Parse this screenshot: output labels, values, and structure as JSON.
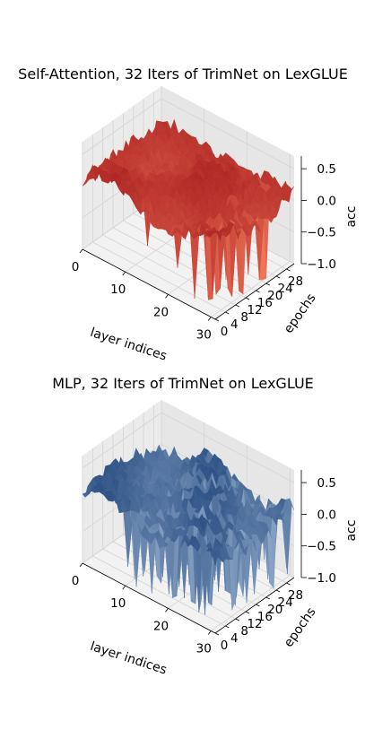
{
  "chart_data": [
    {
      "type": "surface",
      "title": "Self-Attention, 32 Iters of TrimNet on LexGLUE",
      "xlabel": "layer indices",
      "ylabel": "epochs",
      "zlabel": "acc",
      "x_ticks": [
        "0",
        "10",
        "20",
        "30"
      ],
      "y_ticks": [
        "0",
        "4",
        "8",
        "12",
        "16",
        "20",
        "24",
        "28"
      ],
      "z_ticks": [
        "0.5",
        "0.0",
        "−0.5",
        "−1.0"
      ],
      "xlim": [
        0,
        31
      ],
      "ylim": [
        0,
        31
      ],
      "zlim": [
        -1.0,
        0.7
      ],
      "colormap": "Reds",
      "colors": {
        "low": "#ff8a66",
        "high": "#a01418"
      },
      "grid": true,
      "surface_description": "Values mostly between -0.2 and 0.4 with deep drops near -1.0 at the last few layers (x ≈ 26-31).",
      "drops": [
        {
          "x": 27,
          "y": 4,
          "z": -0.95
        },
        {
          "x": 29,
          "y": 10,
          "z": -1.0
        },
        {
          "x": 30,
          "y": 20,
          "z": -0.98
        },
        {
          "x": 21,
          "y": 2,
          "z": -0.6
        },
        {
          "x": 14,
          "y": 2,
          "z": -0.5
        }
      ]
    },
    {
      "type": "surface",
      "title": "MLP, 32 Iters of TrimNet on LexGLUE",
      "xlabel": "layer indices",
      "ylabel": "epochs",
      "zlabel": "acc",
      "x_ticks": [
        "0",
        "10",
        "20",
        "30"
      ],
      "y_ticks": [
        "0",
        "4",
        "8",
        "12",
        "16",
        "20",
        "24",
        "28"
      ],
      "z_ticks": [
        "0.5",
        "0.0",
        "−0.5",
        "−1.0"
      ],
      "xlim": [
        0,
        31
      ],
      "ylim": [
        0,
        31
      ],
      "zlim": [
        -1.0,
        0.7
      ],
      "colormap": "Blues",
      "colors": {
        "low": "#c6dbef",
        "high": "#08306b"
      },
      "grid": true,
      "surface_description": "Values mostly between -0.1 and 0.3 with many sharp drops toward -1.0 spread across layers 10-31.",
      "drops": [
        {
          "x": 11,
          "y": 6,
          "z": -0.9
        },
        {
          "x": 15,
          "y": 2,
          "z": -1.0
        },
        {
          "x": 19,
          "y": 10,
          "z": -0.95
        },
        {
          "x": 23,
          "y": 4,
          "z": -0.9
        },
        {
          "x": 26,
          "y": 16,
          "z": -1.0
        },
        {
          "x": 29,
          "y": 24,
          "z": -0.9
        },
        {
          "x": 13,
          "y": 20,
          "z": -0.85
        }
      ]
    }
  ]
}
